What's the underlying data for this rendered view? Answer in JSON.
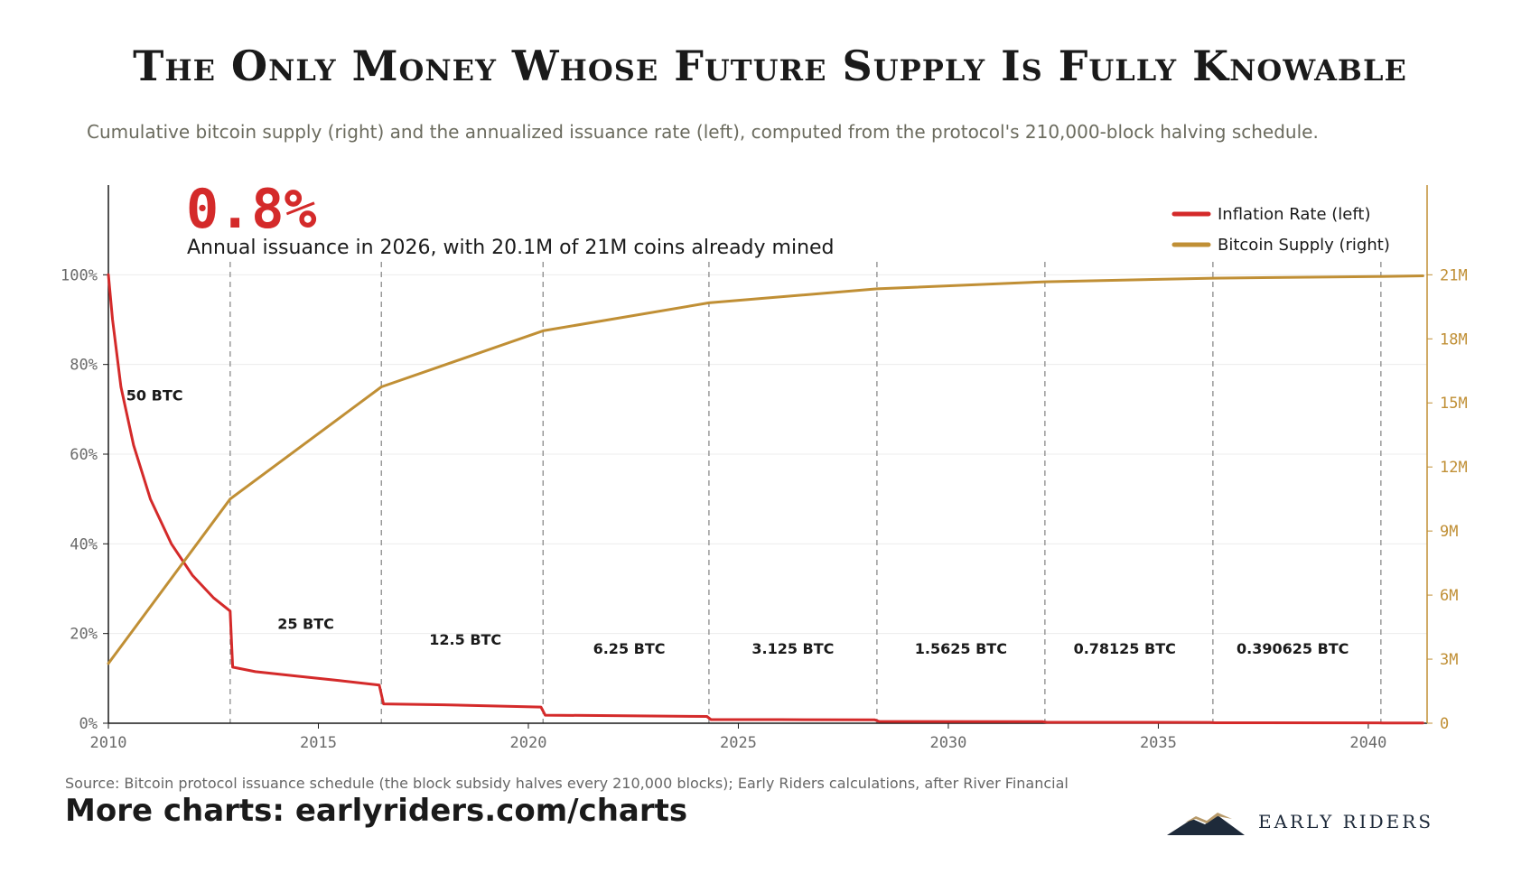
{
  "header": {
    "title": "The Only Money Whose Future Supply Is Fully Knowable",
    "subtitle": "Cumulative bitcoin supply (right) and the annualized issuance rate (left), computed from the protocol's 210,000-block halving schedule."
  },
  "callout": {
    "value": "0.8%",
    "text": "Annual issuance in 2026, with 20.1M of 21M coins already mined",
    "color": "#d42a2a"
  },
  "footer": {
    "source": "Source: Bitcoin protocol issuance schedule (the block subsidy halves every 210,000 blocks); Early Riders calculations, after River Financial",
    "more": "More charts: earlyriders.com/charts"
  },
  "logo": {
    "text": "EARLY RIDERS",
    "icon": "mountain-logo-icon"
  },
  "chart_data": {
    "type": "line",
    "x_range": [
      2010,
      2041.4
    ],
    "x_ticks": [
      2010,
      2015,
      2020,
      2025,
      2030,
      2035,
      2040
    ],
    "y_left": {
      "range": [
        0,
        120
      ],
      "ticks": [
        0,
        20,
        40,
        60,
        80,
        100
      ],
      "tick_labels": [
        "0%",
        "20%",
        "40%",
        "60%",
        "80%",
        "100%"
      ]
    },
    "y_right": {
      "range": [
        0,
        25.2
      ],
      "ticks": [
        0,
        3,
        6,
        9,
        12,
        15,
        18,
        21
      ],
      "tick_labels": [
        "0",
        "3M",
        "6M",
        "9M",
        "12M",
        "15M",
        "18M",
        "21M"
      ]
    },
    "halvings": [
      2012.9,
      2016.5,
      2020.35,
      2024.3,
      2028.3,
      2032.3,
      2036.3,
      2040.3
    ],
    "epochs": [
      {
        "label": "50 BTC",
        "x": 2011.1,
        "y": 72
      },
      {
        "label": "25 BTC",
        "x": 2014.7,
        "y": 21
      },
      {
        "label": "12.5 BTC",
        "x": 2018.5,
        "y": 17.5
      },
      {
        "label": "6.25 BTC",
        "x": 2022.4,
        "y": 15.5
      },
      {
        "label": "3.125 BTC",
        "x": 2026.3,
        "y": 15.5
      },
      {
        "label": "1.5625 BTC",
        "x": 2030.3,
        "y": 15.5
      },
      {
        "label": "0.78125 BTC",
        "x": 2034.2,
        "y": 15.5
      },
      {
        "label": "0.390625 BTC",
        "x": 2038.2,
        "y": 15.5
      }
    ],
    "series": [
      {
        "name": "Inflation Rate (left)",
        "axis": "left",
        "color": "#d42a2a",
        "points": [
          [
            2010,
            100
          ],
          [
            2010.1,
            90
          ],
          [
            2010.3,
            75
          ],
          [
            2010.6,
            62
          ],
          [
            2011,
            50
          ],
          [
            2011.5,
            40
          ],
          [
            2012,
            33
          ],
          [
            2012.5,
            28
          ],
          [
            2012.9,
            25
          ],
          [
            2012.96,
            12.5
          ],
          [
            2013.5,
            11.5
          ],
          [
            2014.5,
            10.5
          ],
          [
            2015.5,
            9.5
          ],
          [
            2016.45,
            8.5
          ],
          [
            2016.55,
            4.3
          ],
          [
            2018,
            4.1
          ],
          [
            2020.3,
            3.6
          ],
          [
            2020.4,
            1.8
          ],
          [
            2022,
            1.7
          ],
          [
            2024.25,
            1.5
          ],
          [
            2024.35,
            0.8
          ],
          [
            2026,
            0.8
          ],
          [
            2028.25,
            0.75
          ],
          [
            2028.35,
            0.4
          ],
          [
            2032.25,
            0.35
          ],
          [
            2032.35,
            0.2
          ],
          [
            2036.25,
            0.18
          ],
          [
            2036.35,
            0.1
          ],
          [
            2040.25,
            0.09
          ],
          [
            2040.35,
            0.05
          ],
          [
            2041.3,
            0.05
          ]
        ]
      },
      {
        "name": "Bitcoin Supply (right)",
        "axis": "right",
        "color": "#c08f35",
        "points": [
          [
            2010,
            2.8
          ],
          [
            2012.9,
            10.5
          ],
          [
            2016.5,
            15.75
          ],
          [
            2020.35,
            18.375
          ],
          [
            2024.3,
            19.6875
          ],
          [
            2028.3,
            20.34
          ],
          [
            2032.3,
            20.67
          ],
          [
            2036.3,
            20.84
          ],
          [
            2040.3,
            20.92
          ],
          [
            2041.3,
            20.95
          ]
        ]
      }
    ],
    "legend": {
      "position": "top-right",
      "entries": [
        "Inflation Rate (left)",
        "Bitcoin Supply (right)"
      ]
    },
    "grid": "horizontal"
  }
}
